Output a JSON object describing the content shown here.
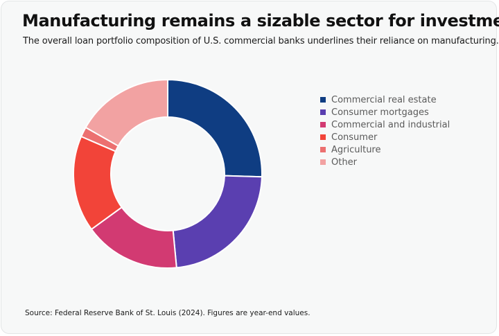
{
  "header": {
    "title": "Manufacturing remains a sizable sector for investment",
    "subtitle": "The overall loan portfolio composition of U.S. commercial banks underlines their reliance on manufacturing."
  },
  "footer": {
    "source": "Source: Federal Reserve Bank of St. Louis (2024). Figures are year-end values."
  },
  "chart_data": {
    "type": "pie",
    "style": "donut",
    "legend_position": "right",
    "categories": [
      "Commercial real estate",
      "Consumer mortgages",
      "Commercial and industrial",
      "Consumer",
      "Agriculture",
      "Other"
    ],
    "values": [
      25.5,
      23.0,
      16.5,
      16.5,
      1.7,
      16.8
    ],
    "colors": [
      "#0f3d82",
      "#5a3fb0",
      "#d23a72",
      "#f24439",
      "#ec7070",
      "#f2a2a2"
    ]
  }
}
